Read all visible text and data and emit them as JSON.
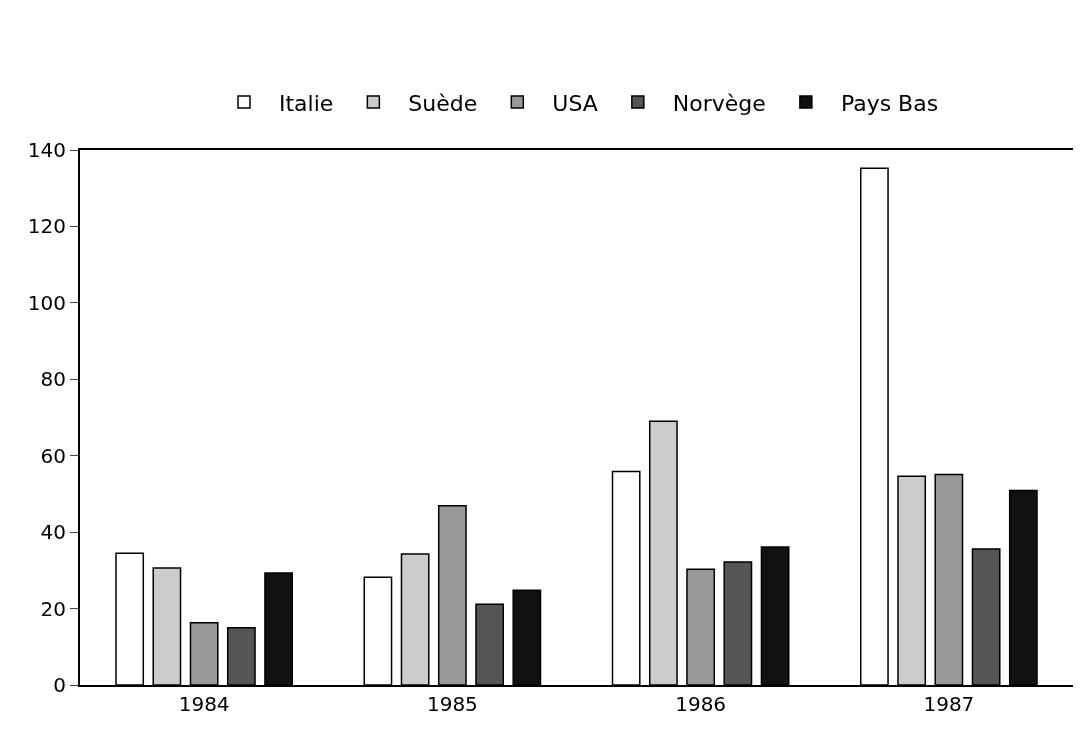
{
  "chart_data": {
    "type": "bar",
    "categories": [
      "1984",
      "1985",
      "1986",
      "1987"
    ],
    "series": [
      {
        "name": "Italie",
        "color": "#ffffff",
        "values": [
          34.5,
          28.2,
          55.9,
          135.2
        ]
      },
      {
        "name": "Suède",
        "color": "#cccccc",
        "values": [
          30.6,
          34.3,
          69,
          54.6
        ]
      },
      {
        "name": "USA",
        "color": "#999999",
        "values": [
          16.3,
          46.9,
          30.3,
          55.1
        ]
      },
      {
        "name": "Norvège",
        "color": "#555555",
        "values": [
          15,
          21.1,
          32.2,
          35.6
        ]
      },
      {
        "name": "Pays Bas",
        "color": "#111111",
        "values": [
          29.3,
          24.8,
          36.1,
          50.9
        ]
      }
    ],
    "ylim": [
      0,
      140
    ],
    "yticks": [
      0,
      20,
      40,
      60,
      80,
      100,
      120,
      140
    ],
    "legend": "top"
  }
}
